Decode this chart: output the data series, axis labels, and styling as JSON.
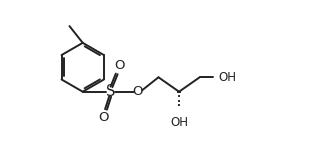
{
  "background": "#ffffff",
  "line_color": "#222222",
  "line_width": 1.4,
  "font_size": 8.5,
  "figsize": [
    3.33,
    1.52
  ],
  "dpi": 100,
  "xlim": [
    0,
    9.5
  ],
  "ylim": [
    0,
    4.0
  ]
}
